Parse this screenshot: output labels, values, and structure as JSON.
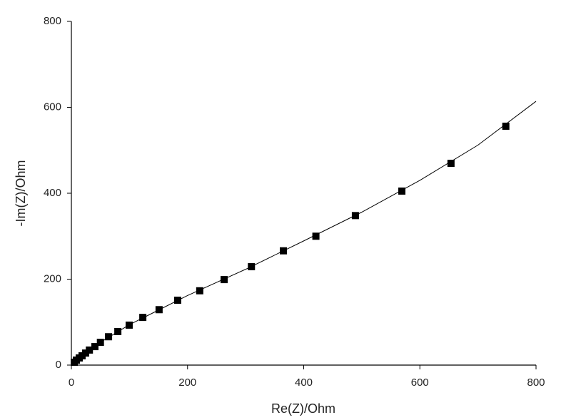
{
  "chart_data": {
    "type": "scatter",
    "x_label": "Re(Z)/Ohm",
    "y_label": "-Im(Z)/Ohm",
    "xlim": [
      0,
      800
    ],
    "ylim": [
      0,
      800
    ],
    "xticks": [
      0,
      200,
      400,
      600,
      800
    ],
    "yticks": [
      0,
      200,
      400,
      600,
      800
    ],
    "grid": false,
    "series": [
      {
        "kind": "line",
        "color": "#000000",
        "x": [
          0,
          10,
          25,
          50,
          100,
          150,
          200,
          300,
          400,
          500,
          600,
          700,
          800
        ],
        "values": [
          0,
          13,
          29,
          53,
          94,
          128,
          162,
          223,
          289,
          356,
          430,
          512,
          614
        ]
      },
      {
        "kind": "marker",
        "color": "#000000",
        "x": [
          5,
          8.6,
          13.5,
          18.4,
          24.5,
          31,
          40.5,
          50,
          64,
          80,
          99.5,
          123,
          151,
          183,
          221,
          263,
          310,
          365,
          421,
          489,
          569,
          653.6,
          748
        ],
        "values": [
          6.6,
          11.6,
          16.6,
          21.6,
          28,
          35,
          43,
          53,
          66,
          78,
          93,
          111,
          129,
          151,
          173,
          199,
          229,
          266,
          300,
          348,
          405,
          469.7,
          556
        ]
      }
    ]
  }
}
